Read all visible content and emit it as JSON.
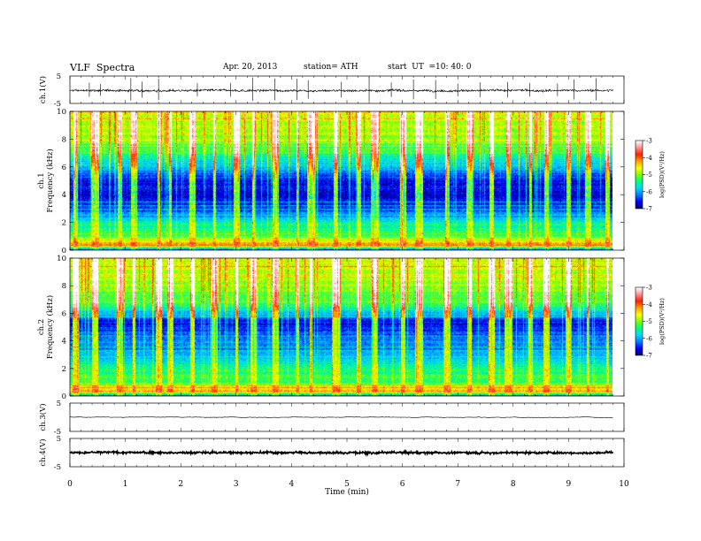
{
  "header": {
    "title": "VLF  Spectra",
    "date": "Apr. 20, 2013",
    "station": "station= ATH",
    "start_label": "start  UT  =",
    "start_value": "10: 40: 0"
  },
  "colors": {
    "background": "#ffffff",
    "axis": "#000000",
    "colormap": [
      "#000070",
      "#0000ff",
      "#0080ff",
      "#00d8ff",
      "#00ff80",
      "#7fff00",
      "#ffff00",
      "#ffa000",
      "#ff2000",
      "#ff9090",
      "#ffffff"
    ]
  },
  "chart_data": [
    {
      "type": "line",
      "panel": "ch1-waveform",
      "ylabel": "ch.1(V)",
      "ylim": [
        -5,
        5
      ],
      "yticks": [
        "5",
        "-5"
      ],
      "baseline": -0.3,
      "noise_amplitude": 0.4,
      "spike_times_min": [
        0.35,
        0.55,
        1.1,
        1.3,
        1.6,
        2.3,
        2.9,
        3.3,
        3.7,
        4.1,
        4.3,
        4.9,
        5.4,
        5.8,
        6.2,
        6.6,
        7.0,
        7.4,
        7.9,
        8.3,
        8.8,
        9.1,
        9.5
      ]
    },
    {
      "type": "heatmap",
      "panel": "ch1-spectrogram",
      "ylabel": "ch.1 Frequency  (kHz)",
      "xlim": [
        0,
        10
      ],
      "data_extent_min": 9.8,
      "ylim": [
        0,
        10
      ],
      "yticks": [
        "0",
        "2",
        "4",
        "6",
        "8",
        "10"
      ],
      "colorbar": {
        "label": "log(PSD)(V²/Hz)",
        "range": [
          -7,
          -3
        ],
        "ticks": [
          "-3",
          "-4",
          "-5",
          "-6",
          "-7"
        ]
      },
      "freq_profile": {
        "freq_khz": [
          0,
          0.3,
          0.6,
          1.0,
          1.5,
          2.0,
          2.5,
          3.0,
          3.5,
          4.0,
          4.5,
          5.0,
          5.5,
          6.0,
          6.5,
          7.0,
          8.0,
          9.0,
          10.0
        ],
        "log_psd": [
          -6.4,
          -4.2,
          -4.6,
          -5.2,
          -5.4,
          -5.6,
          -6.0,
          -6.4,
          -6.6,
          -6.7,
          -6.6,
          -6.6,
          -6.3,
          -5.9,
          -5.6,
          -5.3,
          -5.0,
          -4.8,
          -4.7
        ]
      },
      "burst_times_min": [
        0.1,
        0.45,
        0.9,
        1.15,
        1.6,
        1.8,
        2.2,
        2.6,
        3.0,
        3.3,
        3.7,
        4.1,
        4.35,
        4.8,
        5.2,
        5.5,
        6.0,
        6.3,
        6.8,
        7.2,
        7.6,
        7.9,
        8.3,
        8.6,
        9.0,
        9.35,
        9.7
      ]
    },
    {
      "type": "heatmap",
      "panel": "ch2-spectrogram",
      "ylabel": "ch.2 Frequency  (kHz)",
      "xlim": [
        0,
        10
      ],
      "data_extent_min": 9.8,
      "ylim": [
        0,
        10
      ],
      "yticks": [
        "0",
        "2",
        "4",
        "6",
        "8",
        "10"
      ],
      "colorbar": {
        "label": "log(PSD)(V²/Hz)",
        "range": [
          -7,
          -3
        ],
        "ticks": [
          "-3",
          "-4",
          "-5",
          "-6",
          "-7"
        ]
      },
      "freq_profile": {
        "freq_khz": [
          0,
          0.3,
          0.6,
          1.0,
          1.5,
          2.0,
          2.5,
          3.0,
          3.5,
          4.0,
          4.5,
          5.0,
          5.5,
          6.0,
          6.5,
          7.0,
          8.0,
          9.0,
          10.0
        ],
        "log_psd": [
          -6.4,
          -4.3,
          -4.8,
          -5.2,
          -5.3,
          -5.4,
          -5.8,
          -6.0,
          -6.2,
          -6.2,
          -6.3,
          -6.6,
          -6.6,
          -5.8,
          -5.4,
          -5.2,
          -4.9,
          -4.8,
          -4.7
        ]
      },
      "burst_times_min": [
        0.1,
        0.45,
        0.9,
        1.15,
        1.6,
        1.8,
        2.2,
        2.6,
        3.0,
        3.3,
        3.7,
        4.1,
        4.35,
        4.8,
        5.2,
        5.5,
        6.0,
        6.3,
        6.8,
        7.2,
        7.6,
        7.9,
        8.3,
        8.6,
        9.0,
        9.35,
        9.7
      ]
    },
    {
      "type": "line",
      "panel": "ch3-waveform",
      "ylabel": "ch.3(V)",
      "ylim": [
        -5,
        5
      ],
      "yticks": [
        "5",
        "-5"
      ],
      "baseline": 0,
      "noise_amplitude": 0.05
    },
    {
      "type": "line",
      "panel": "ch4-waveform",
      "ylabel": "ch.4(V)",
      "ylim": [
        -5,
        5
      ],
      "yticks": [
        "5",
        "-5"
      ],
      "baseline": 0,
      "noise_amplitude": 0.35
    }
  ],
  "x_axis": {
    "label": "Time  (min)",
    "range": [
      0,
      10
    ],
    "ticks": [
      "0",
      "1",
      "2",
      "3",
      "4",
      "5",
      "6",
      "7",
      "8",
      "9",
      "10"
    ]
  }
}
